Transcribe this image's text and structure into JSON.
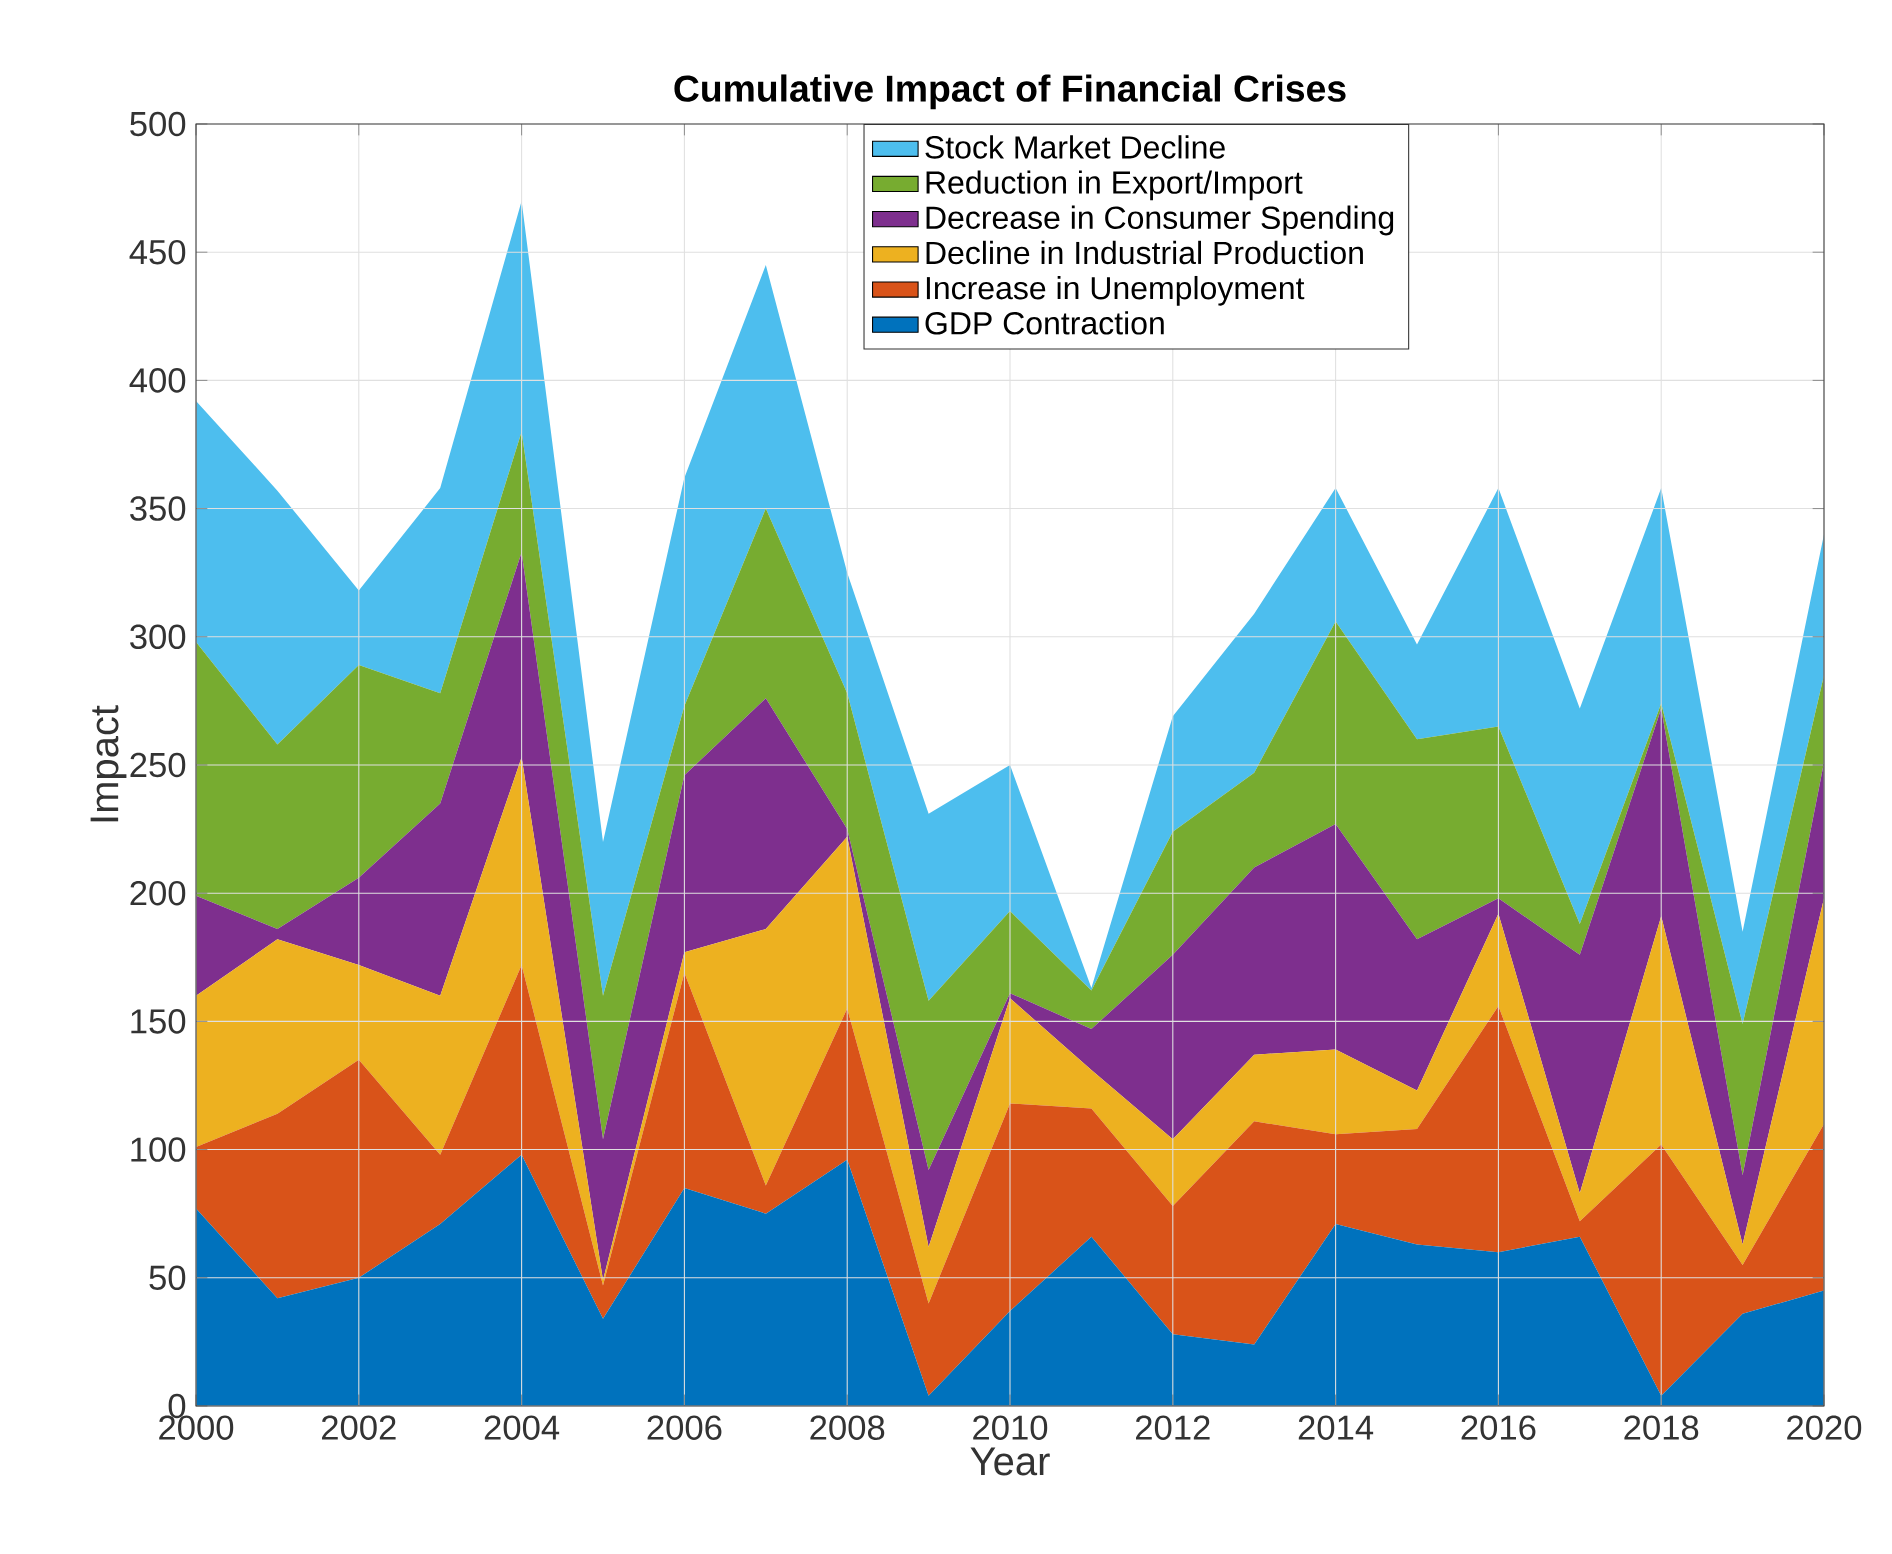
{
  "chart_data": {
    "type": "area",
    "stacked": true,
    "title": "Cumulative Impact of Financial Crises",
    "xlabel": "Year",
    "ylabel": "Impact",
    "x": [
      2000,
      2001,
      2002,
      2003,
      2004,
      2005,
      2006,
      2007,
      2008,
      2009,
      2010,
      2011,
      2012,
      2013,
      2014,
      2015,
      2016,
      2017,
      2018,
      2019,
      2020
    ],
    "series": [
      {
        "name": "GDP Contraction",
        "color": "#0072bd",
        "values": [
          77,
          42,
          50,
          71,
          98,
          34,
          85,
          75,
          96,
          4,
          37,
          66,
          28,
          24,
          71,
          63,
          60,
          66,
          4,
          36,
          45
        ]
      },
      {
        "name": "Increase in Unemployment",
        "color": "#d95319",
        "values": [
          24,
          72,
          85,
          27,
          74,
          13,
          84,
          11,
          59,
          36,
          81,
          50,
          50,
          87,
          35,
          45,
          96,
          6,
          98,
          19,
          65
        ]
      },
      {
        "name": "Decline in Industrial Production",
        "color": "#edb120",
        "values": [
          59,
          68,
          37,
          62,
          81,
          2,
          8,
          100,
          67,
          22,
          41,
          15,
          26,
          26,
          33,
          15,
          36,
          11,
          89,
          8,
          88
        ]
      },
      {
        "name": "Decrease in Consumer Spending",
        "color": "#7e2f8e",
        "values": [
          39,
          4,
          34,
          75,
          80,
          55,
          69,
          90,
          3,
          30,
          2,
          16,
          72,
          73,
          88,
          59,
          6,
          93,
          81,
          27,
          53
        ]
      },
      {
        "name": "Reduction in Export/Import",
        "color": "#77ac30",
        "values": [
          99,
          72,
          83,
          43,
          47,
          56,
          27,
          74,
          53,
          66,
          32,
          15,
          48,
          37,
          79,
          78,
          67,
          12,
          2,
          59,
          34
        ]
      },
      {
        "name": "Stock Market Decline",
        "color": "#4dbeee",
        "values": [
          94,
          99,
          29,
          80,
          90,
          60,
          89,
          95,
          47,
          73,
          57,
          1,
          45,
          62,
          52,
          37,
          93,
          84,
          84,
          36,
          55
        ]
      }
    ],
    "xlim": [
      2000,
      2020
    ],
    "ylim": [
      0,
      500
    ],
    "xticks": [
      2000,
      2002,
      2004,
      2006,
      2008,
      2010,
      2012,
      2014,
      2016,
      2018,
      2020
    ],
    "yticks": [
      0,
      50,
      100,
      150,
      200,
      250,
      300,
      350,
      400,
      450,
      500
    ],
    "grid": true,
    "legend": "top"
  }
}
